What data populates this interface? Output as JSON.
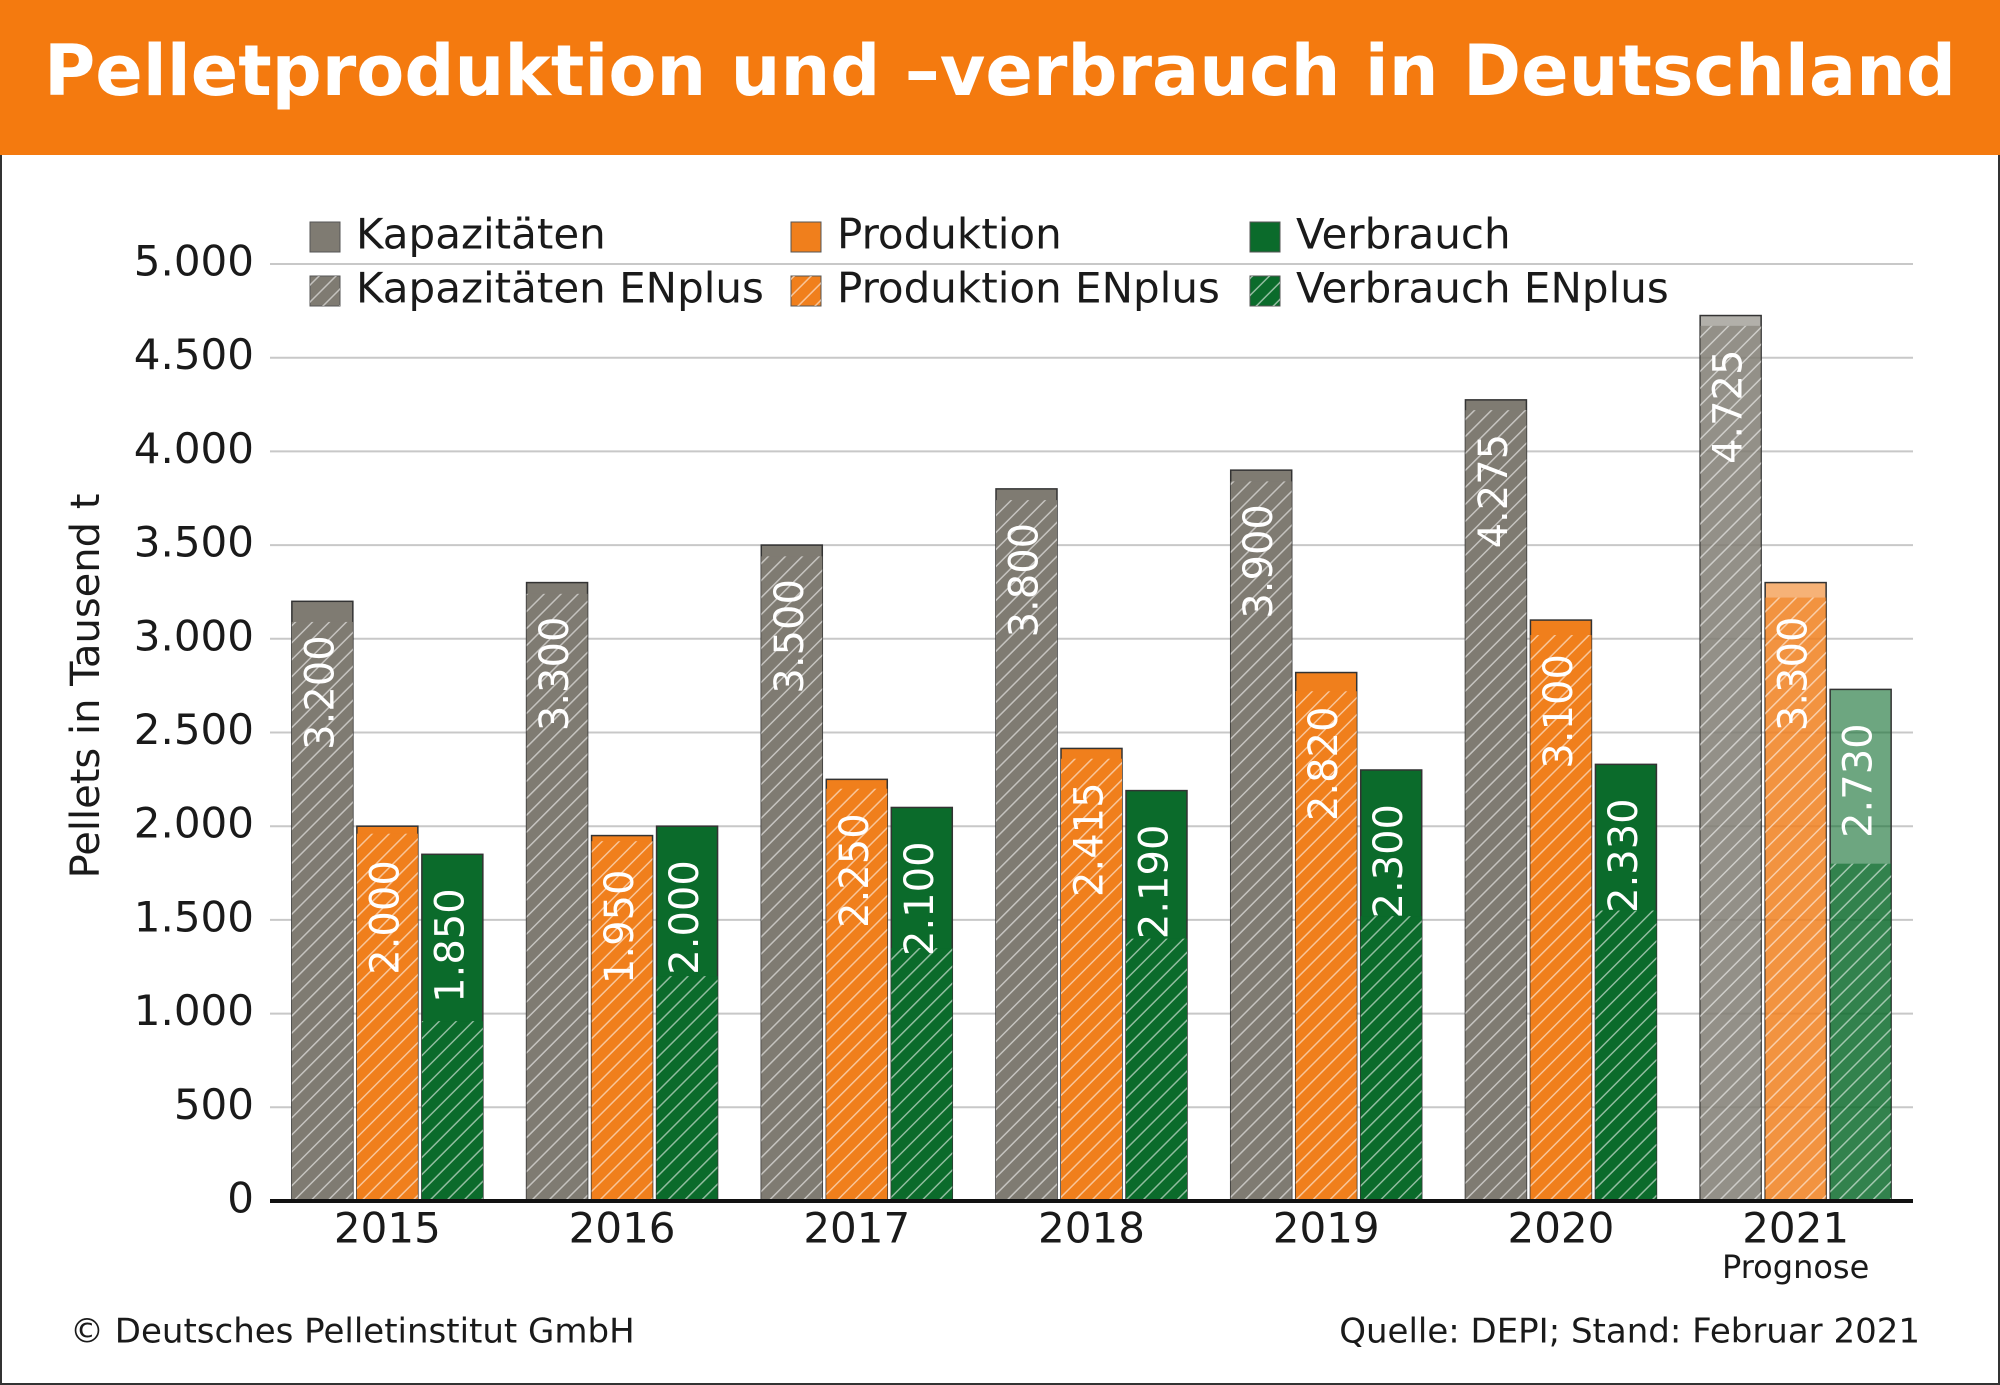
{
  "chart_data": {
    "type": "bar",
    "title": "Pelletproduktion und –verbrauch in Deutschland",
    "y_label": "Pellets in Tausend t",
    "categories": [
      "2015",
      "2016",
      "2017",
      "2018",
      "2019",
      "2020",
      "2021"
    ],
    "category_notes": [
      null,
      null,
      null,
      null,
      null,
      null,
      "Prognose"
    ],
    "series": [
      {
        "name": "Kapazitäten",
        "color": "#7f7b72",
        "values": [
          3200,
          3300,
          3500,
          3800,
          3900,
          4275,
          4725
        ],
        "value_labels": [
          "3.200",
          "3.300",
          "3.500",
          "3.800",
          "3.900",
          "4.275",
          "4.725"
        ]
      },
      {
        "name": "Produktion",
        "color": "#f07f1c",
        "values": [
          2000,
          1950,
          2250,
          2415,
          2820,
          3100,
          3300
        ],
        "value_labels": [
          "2.000",
          "1.950",
          "2.250",
          "2.415",
          "2.820",
          "3.100",
          "3.300"
        ]
      },
      {
        "name": "Verbrauch",
        "color": "#0b6b2b",
        "values": [
          1850,
          2000,
          2100,
          2190,
          2300,
          2330,
          2730
        ],
        "value_labels": [
          "1.850",
          "2.000",
          "2.100",
          "2.190",
          "2.300",
          "2.330",
          "2.730"
        ]
      },
      {
        "name": "Kapazitäten ENplus",
        "color": "#7f7b72",
        "hatched": true,
        "values": [
          3090,
          3240,
          3440,
          3740,
          3840,
          4220,
          4670
        ]
      },
      {
        "name": "Produktion ENplus",
        "color": "#f07f1c",
        "hatched": true,
        "values": [
          1960,
          1920,
          2200,
          2360,
          2720,
          3020,
          3220
        ]
      },
      {
        "name": "Verbrauch ENplus",
        "color": "#0b6b2b",
        "hatched": true,
        "values": [
          960,
          1200,
          1350,
          1400,
          1520,
          1550,
          1800
        ]
      }
    ],
    "ylim": [
      0,
      5000
    ],
    "yticks": [
      0,
      500,
      {
        "value": 1000,
        "label": "1.000"
      },
      {
        "value": 1500,
        "label": "1.500"
      },
      {
        "value": 2000,
        "label": "2.000"
      },
      {
        "value": 2500,
        "label": "2.500"
      },
      {
        "value": 3000,
        "label": "3.000"
      },
      {
        "value": 3500,
        "label": "3.500"
      },
      {
        "value": 4000,
        "label": "4.000"
      },
      {
        "value": 4500,
        "label": "4.500"
      },
      {
        "value": 5000,
        "label": "5.000"
      }
    ],
    "grid": true,
    "footer_left": "© Deutsches Pelletinstitut GmbH",
    "footer_right": "Quelle: DEPI; Stand: Februar 2021"
  }
}
